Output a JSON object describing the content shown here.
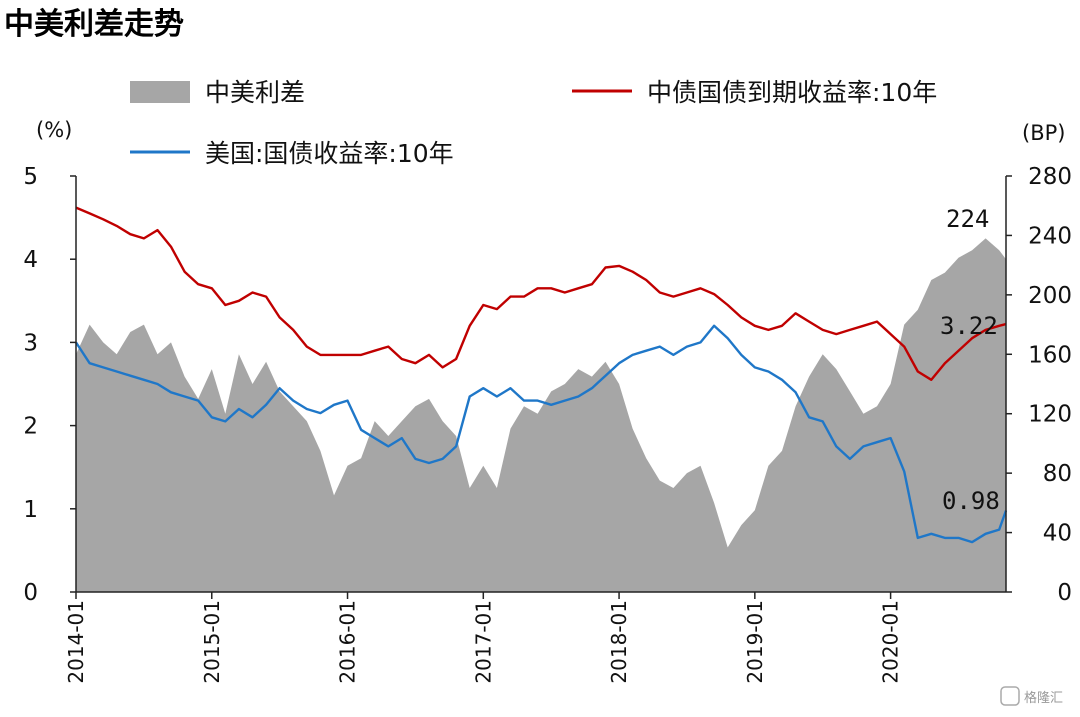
{
  "title": "中美利差走势",
  "watermark": "格隆汇",
  "colors": {
    "spread_fill": "#a6a6a6",
    "cn_line": "#c00000",
    "us_line": "#1f77c8",
    "axis": "#222222"
  },
  "chart_data": {
    "type": "line",
    "left_axis": {
      "unit_label": "(%)",
      "ylim": [
        0,
        5
      ],
      "ticks": [
        "0",
        "1",
        "2",
        "3",
        "4",
        "5"
      ]
    },
    "right_axis": {
      "unit_label": "(BP)",
      "ylim": [
        0,
        280
      ],
      "ticks": [
        "0",
        "40",
        "80",
        "120",
        "160",
        "200",
        "240",
        "280"
      ]
    },
    "x_ticks": [
      "2014-01",
      "2015-01",
      "2016-01",
      "2017-01",
      "2018-01",
      "2019-01",
      "2020-01"
    ],
    "x_range": [
      2014.0,
      2020.85
    ],
    "legend": {
      "spread": "中美利差",
      "cn": "中债国债到期收益率:10年",
      "us": "美国:国债收益率:10年"
    },
    "annotations": {
      "spread_last": "224",
      "cn_last": "3.22",
      "us_last": "0.98"
    },
    "series": [
      {
        "name": "中美利差",
        "axis": "right",
        "type": "area",
        "x": [
          2014.0,
          2014.1,
          2014.2,
          2014.3,
          2014.4,
          2014.5,
          2014.6,
          2014.7,
          2014.8,
          2014.9,
          2015.0,
          2015.1,
          2015.2,
          2015.3,
          2015.4,
          2015.5,
          2015.6,
          2015.7,
          2015.8,
          2015.9,
          2016.0,
          2016.1,
          2016.2,
          2016.3,
          2016.4,
          2016.5,
          2016.6,
          2016.7,
          2016.8,
          2016.9,
          2017.0,
          2017.1,
          2017.2,
          2017.3,
          2017.4,
          2017.5,
          2017.6,
          2017.7,
          2017.8,
          2017.9,
          2018.0,
          2018.1,
          2018.2,
          2018.3,
          2018.4,
          2018.5,
          2018.6,
          2018.7,
          2018.8,
          2018.9,
          2019.0,
          2019.1,
          2019.2,
          2019.3,
          2019.4,
          2019.5,
          2019.6,
          2019.7,
          2019.8,
          2019.9,
          2020.0,
          2020.1,
          2020.2,
          2020.3,
          2020.4,
          2020.5,
          2020.6,
          2020.7,
          2020.8,
          2020.85
        ],
        "values": [
          160,
          180,
          168,
          160,
          175,
          180,
          160,
          168,
          145,
          130,
          150,
          120,
          160,
          140,
          155,
          135,
          125,
          115,
          95,
          65,
          85,
          90,
          115,
          105,
          115,
          125,
          130,
          115,
          105,
          70,
          85,
          70,
          110,
          125,
          120,
          135,
          140,
          150,
          145,
          155,
          140,
          110,
          90,
          75,
          70,
          80,
          85,
          60,
          30,
          45,
          55,
          85,
          95,
          125,
          145,
          160,
          150,
          135,
          120,
          125,
          140,
          180,
          190,
          210,
          215,
          225,
          230,
          238,
          230,
          224
        ]
      },
      {
        "name": "中债国债到期收益率:10年",
        "axis": "left",
        "type": "line",
        "x": [
          2014.0,
          2014.1,
          2014.2,
          2014.3,
          2014.4,
          2014.5,
          2014.6,
          2014.7,
          2014.8,
          2014.9,
          2015.0,
          2015.1,
          2015.2,
          2015.3,
          2015.4,
          2015.5,
          2015.6,
          2015.7,
          2015.8,
          2015.9,
          2016.0,
          2016.1,
          2016.2,
          2016.3,
          2016.4,
          2016.5,
          2016.6,
          2016.7,
          2016.8,
          2016.9,
          2017.0,
          2017.1,
          2017.2,
          2017.3,
          2017.4,
          2017.5,
          2017.6,
          2017.7,
          2017.8,
          2017.9,
          2018.0,
          2018.1,
          2018.2,
          2018.3,
          2018.4,
          2018.5,
          2018.6,
          2018.7,
          2018.8,
          2018.9,
          2019.0,
          2019.1,
          2019.2,
          2019.3,
          2019.4,
          2019.5,
          2019.6,
          2019.7,
          2019.8,
          2019.9,
          2020.0,
          2020.1,
          2020.2,
          2020.3,
          2020.4,
          2020.5,
          2020.6,
          2020.7,
          2020.8,
          2020.85
        ],
        "values": [
          4.62,
          4.55,
          4.48,
          4.4,
          4.3,
          4.25,
          4.35,
          4.15,
          3.85,
          3.7,
          3.65,
          3.45,
          3.5,
          3.6,
          3.55,
          3.3,
          3.15,
          2.95,
          2.85,
          2.85,
          2.85,
          2.85,
          2.9,
          2.95,
          2.8,
          2.75,
          2.85,
          2.7,
          2.8,
          3.2,
          3.45,
          3.4,
          3.55,
          3.55,
          3.65,
          3.65,
          3.6,
          3.65,
          3.7,
          3.9,
          3.92,
          3.85,
          3.75,
          3.6,
          3.55,
          3.6,
          3.65,
          3.58,
          3.45,
          3.3,
          3.2,
          3.15,
          3.2,
          3.35,
          3.25,
          3.15,
          3.1,
          3.15,
          3.2,
          3.25,
          3.1,
          2.95,
          2.65,
          2.55,
          2.75,
          2.9,
          3.05,
          3.15,
          3.2,
          3.22
        ]
      },
      {
        "name": "美国:国债收益率:10年",
        "axis": "left",
        "type": "line",
        "x": [
          2014.0,
          2014.1,
          2014.2,
          2014.3,
          2014.4,
          2014.5,
          2014.6,
          2014.7,
          2014.8,
          2014.9,
          2015.0,
          2015.1,
          2015.2,
          2015.3,
          2015.4,
          2015.5,
          2015.6,
          2015.7,
          2015.8,
          2015.9,
          2016.0,
          2016.1,
          2016.2,
          2016.3,
          2016.4,
          2016.5,
          2016.6,
          2016.7,
          2016.8,
          2016.9,
          2017.0,
          2017.1,
          2017.2,
          2017.3,
          2017.4,
          2017.5,
          2017.6,
          2017.7,
          2017.8,
          2017.9,
          2018.0,
          2018.1,
          2018.2,
          2018.3,
          2018.4,
          2018.5,
          2018.6,
          2018.7,
          2018.8,
          2018.9,
          2019.0,
          2019.1,
          2019.2,
          2019.3,
          2019.4,
          2019.5,
          2019.6,
          2019.7,
          2019.8,
          2019.9,
          2020.0,
          2020.1,
          2020.2,
          2020.3,
          2020.4,
          2020.5,
          2020.6,
          2020.7,
          2020.8,
          2020.85
        ],
        "values": [
          3.0,
          2.75,
          2.7,
          2.65,
          2.6,
          2.55,
          2.5,
          2.4,
          2.35,
          2.3,
          2.1,
          2.05,
          2.2,
          2.1,
          2.25,
          2.45,
          2.3,
          2.2,
          2.15,
          2.25,
          2.3,
          1.95,
          1.85,
          1.75,
          1.85,
          1.6,
          1.55,
          1.6,
          1.75,
          2.35,
          2.45,
          2.35,
          2.45,
          2.3,
          2.3,
          2.25,
          2.3,
          2.35,
          2.45,
          2.6,
          2.75,
          2.85,
          2.9,
          2.95,
          2.85,
          2.95,
          3.0,
          3.2,
          3.05,
          2.85,
          2.7,
          2.65,
          2.55,
          2.4,
          2.1,
          2.05,
          1.75,
          1.6,
          1.75,
          1.8,
          1.85,
          1.45,
          0.65,
          0.7,
          0.65,
          0.65,
          0.6,
          0.7,
          0.75,
          0.98
        ]
      }
    ]
  }
}
